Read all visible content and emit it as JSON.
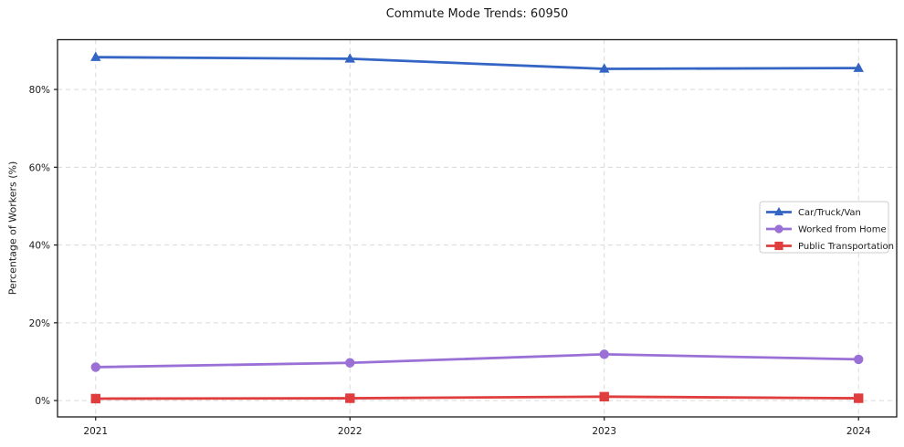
{
  "chart_data": {
    "type": "line",
    "title": "Commute Mode Trends: 60950",
    "xlabel": "",
    "ylabel": "Percentage of Workers (%)",
    "x": [
      2021,
      2022,
      2023,
      2024
    ],
    "x_tick_labels": [
      "2021",
      "2022",
      "2023",
      "2024"
    ],
    "y_ticks": [
      0,
      20,
      40,
      60,
      80
    ],
    "y_tick_labels": [
      "0%",
      "20%",
      "40%",
      "60%",
      "80%"
    ],
    "xlim": [
      2020.85,
      2024.15
    ],
    "ylim": [
      -4.2,
      92.8
    ],
    "grid": true,
    "grid_style": "dashed",
    "legend_position": "center-right",
    "series": [
      {
        "name": "Car/Truck/Van",
        "marker": "triangle",
        "color": "#3465c4",
        "values": [
          88.3,
          87.9,
          85.3,
          85.5
        ]
      },
      {
        "name": "Worked from Home",
        "marker": "circle",
        "color": "#9a70d6",
        "values": [
          8.6,
          9.7,
          11.9,
          10.6
        ]
      },
      {
        "name": "Public Transportation",
        "marker": "square",
        "color": "#e03e3e",
        "values": [
          0.5,
          0.6,
          1.0,
          0.6
        ]
      }
    ],
    "colors": {
      "grid": "#d9d9d9",
      "spine": "#1a1a1a",
      "legend_border": "#cccccc",
      "legend_bg": "#ffffff"
    }
  }
}
